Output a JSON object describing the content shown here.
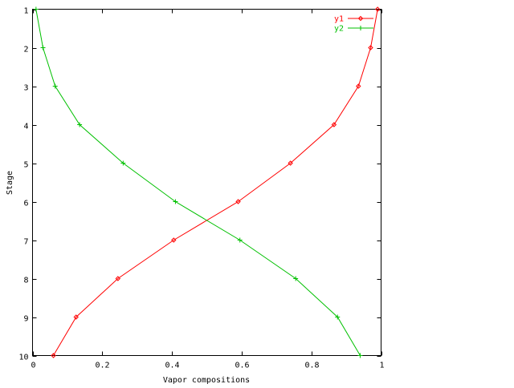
{
  "chart_data": {
    "type": "line",
    "title": "",
    "xlabel": "Vapor compositions",
    "ylabel": "Stage",
    "xlim": [
      0,
      1
    ],
    "ylim": [
      1,
      10
    ],
    "y_reversed": true,
    "grid": false,
    "legend_position": "top-right",
    "x_ticks": [
      {
        "value": 0,
        "label": "0"
      },
      {
        "value": 0.2,
        "label": "0.2"
      },
      {
        "value": 0.4,
        "label": "0.4"
      },
      {
        "value": 0.6,
        "label": "0.6"
      },
      {
        "value": 0.8,
        "label": "0.8"
      },
      {
        "value": 1,
        "label": "1"
      }
    ],
    "y_ticks": [
      {
        "value": 1,
        "label": "1"
      },
      {
        "value": 2,
        "label": "2"
      },
      {
        "value": 3,
        "label": "3"
      },
      {
        "value": 4,
        "label": "4"
      },
      {
        "value": 5,
        "label": "5"
      },
      {
        "value": 6,
        "label": "6"
      },
      {
        "value": 7,
        "label": "7"
      },
      {
        "value": 8,
        "label": "8"
      },
      {
        "value": 9,
        "label": "9"
      },
      {
        "value": 10,
        "label": "10"
      }
    ],
    "series": [
      {
        "name": "y1",
        "color": "#ff0000",
        "marker": "diamond",
        "points": [
          {
            "x": 0.99,
            "y": 1
          },
          {
            "x": 0.97,
            "y": 2
          },
          {
            "x": 0.935,
            "y": 3
          },
          {
            "x": 0.865,
            "y": 4
          },
          {
            "x": 0.74,
            "y": 5
          },
          {
            "x": 0.59,
            "y": 6
          },
          {
            "x": 0.405,
            "y": 7
          },
          {
            "x": 0.245,
            "y": 8
          },
          {
            "x": 0.125,
            "y": 9
          },
          {
            "x": 0.06,
            "y": 10
          }
        ]
      },
      {
        "name": "y2",
        "color": "#00c000",
        "marker": "plus",
        "points": [
          {
            "x": 0.01,
            "y": 1
          },
          {
            "x": 0.03,
            "y": 2
          },
          {
            "x": 0.065,
            "y": 3
          },
          {
            "x": 0.135,
            "y": 4
          },
          {
            "x": 0.26,
            "y": 5
          },
          {
            "x": 0.41,
            "y": 6
          },
          {
            "x": 0.595,
            "y": 7
          },
          {
            "x": 0.755,
            "y": 8
          },
          {
            "x": 0.875,
            "y": 9
          },
          {
            "x": 0.94,
            "y": 10
          }
        ]
      }
    ]
  }
}
